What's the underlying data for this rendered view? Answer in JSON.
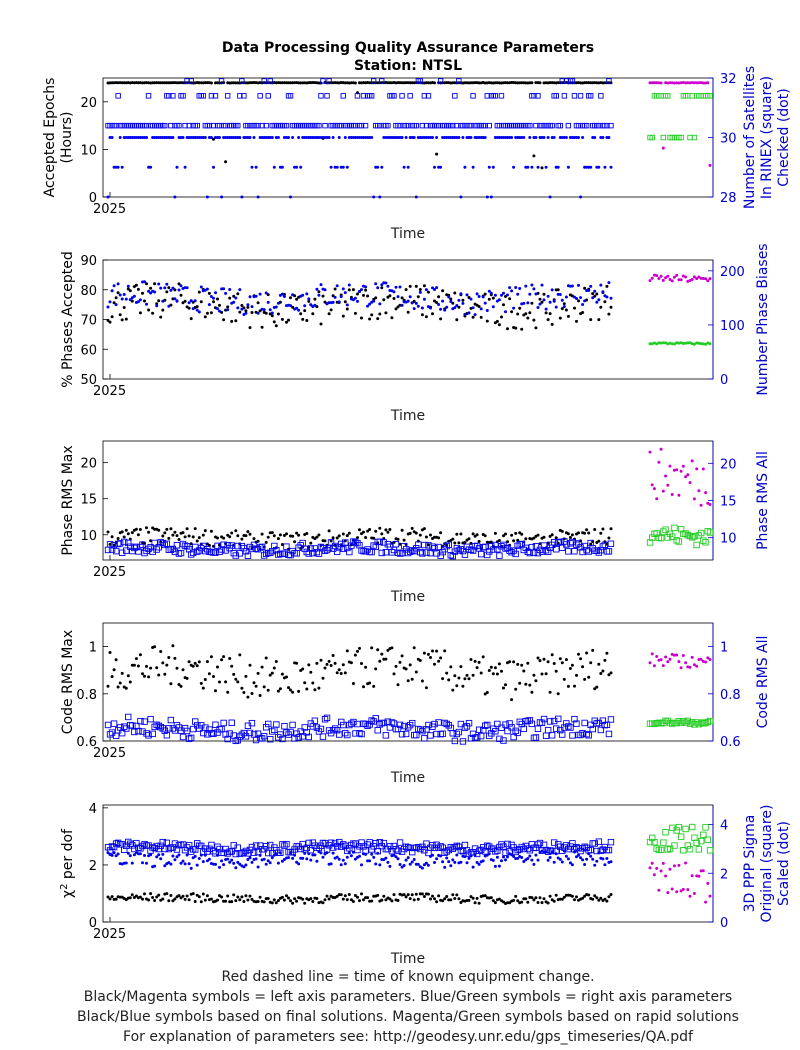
{
  "title_line1": "Data Processing Quality Assurance Parameters",
  "title_line2": "Station: NTSL",
  "colors": {
    "left_final": "#000000",
    "right_final": "#0000ee",
    "left_rapid": "#cc00cc",
    "right_rapid": "#22cc22",
    "axis_right": "#0000cc"
  },
  "footer": [
    "Red dashed line = time of known equipment change.",
    "Black/Magenta symbols = left axis parameters. Blue/Green symbols = right axis parameters",
    "Black/Blue symbols based on final solutions.  Magenta/Green symbols based on rapid solutions",
    "For explanation of parameters see: http://geodesy.unr.edu/gps_timeseries/QA.pdf"
  ],
  "chart_data": [
    {
      "type": "scatter",
      "xlabel": "Time",
      "x_tick_label": "2025",
      "ylabel_left": [
        "Accepted Epochs",
        "(Hours)"
      ],
      "ylabel_right": [
        "Number of Satellites",
        "In RINEX (square)",
        "Checked (dot)"
      ],
      "ylim_left": [
        0,
        25
      ],
      "yticks_left": [
        0,
        10,
        20
      ],
      "ylim_right": [
        28,
        32
      ],
      "yticks_right": [
        28,
        30,
        32
      ],
      "x_days": [
        1,
        260
      ],
      "series": [
        {
          "name": "Accepted Epochs",
          "axis": "left",
          "marker": "dot",
          "solution": "final",
          "typical": 24,
          "spread": 0.05
        },
        {
          "name": "Satellites in RINEX",
          "axis": "right",
          "marker": "square",
          "solution": "final",
          "levels": [
            30.4,
            31.4,
            31.9
          ]
        },
        {
          "name": "Satellites Checked",
          "axis": "right",
          "marker": "dot",
          "solution": "final",
          "levels": [
            30,
            29,
            28
          ]
        },
        {
          "name": "Accepted Epochs (rapid)",
          "axis": "left",
          "marker": "dot",
          "solution": "rapid",
          "typical": 24,
          "spread": 0.05
        },
        {
          "name": "Satellites in RINEX (rapid)",
          "axis": "right",
          "marker": "square",
          "solution": "rapid",
          "levels": [
            31.4,
            30
          ]
        }
      ]
    },
    {
      "type": "scatter",
      "xlabel": "Time",
      "x_tick_label": "2025",
      "ylabel_left": [
        "% Phases Accepted"
      ],
      "ylabel_right": [
        "Number Phase Biases"
      ],
      "ylim_left": [
        50,
        90
      ],
      "yticks_left": [
        50,
        60,
        70,
        80,
        90
      ],
      "ylim_right": [
        0,
        220
      ],
      "yticks_right": [
        0,
        100,
        200
      ],
      "series": [
        {
          "name": "% Phases Accepted",
          "axis": "left",
          "solution": "final",
          "range": [
            67,
            82
          ]
        },
        {
          "name": "Number Phase Biases",
          "axis": "right",
          "solution": "final",
          "range": [
            120,
            180
          ]
        },
        {
          "name": "% Phases Accepted (rapid)",
          "axis": "left",
          "solution": "rapid",
          "range": [
            82,
            85
          ]
        },
        {
          "name": "Number Phase Biases (rapid)",
          "axis": "right",
          "solution": "rapid",
          "range": [
            64,
            68
          ]
        }
      ]
    },
    {
      "type": "scatter",
      "xlabel": "Time",
      "x_tick_label": "2025",
      "ylabel_left": [
        "Phase RMS Max"
      ],
      "ylabel_right": [
        "Phase RMS All"
      ],
      "ylim_left": [
        6.5,
        23
      ],
      "yticks_left": [
        10,
        15,
        20
      ],
      "ylim_right": [
        7,
        23
      ],
      "yticks_right": [
        10,
        15,
        20
      ],
      "series": [
        {
          "name": "Phase RMS Max",
          "axis": "left",
          "solution": "final",
          "range": [
            8,
            11
          ]
        },
        {
          "name": "Phase RMS All",
          "axis": "right",
          "solution": "final",
          "range": [
            7.5,
            9.5
          ]
        },
        {
          "name": "Phase RMS Max (rapid)",
          "axis": "left",
          "solution": "rapid",
          "range": [
            13,
            22
          ]
        },
        {
          "name": "Phase RMS All (rapid)",
          "axis": "right",
          "solution": "rapid",
          "range": [
            9,
            12
          ]
        }
      ]
    },
    {
      "type": "scatter",
      "xlabel": "Time",
      "x_tick_label": "2025",
      "ylabel_left": [
        "Code RMS Max"
      ],
      "ylabel_right": [
        "Code RMS All"
      ],
      "ylim_left": [
        0.6,
        1.1
      ],
      "yticks_left": [
        0.6,
        0.8,
        1
      ],
      "ylim_right": [
        0.6,
        1.1
      ],
      "yticks_right": [
        0.6,
        0.8,
        1
      ],
      "series": [
        {
          "name": "Code RMS Max",
          "axis": "left",
          "solution": "final",
          "range": [
            0.78,
            1.0
          ]
        },
        {
          "name": "Code RMS All",
          "axis": "right",
          "solution": "final",
          "range": [
            0.6,
            0.7
          ]
        },
        {
          "name": "Code RMS Max (rapid)",
          "axis": "left",
          "solution": "rapid",
          "range": [
            0.9,
            0.97
          ]
        },
        {
          "name": "Code RMS All (rapid)",
          "axis": "right",
          "solution": "rapid",
          "range": [
            0.67,
            0.69
          ]
        }
      ]
    },
    {
      "type": "scatter",
      "xlabel": "Time",
      "x_tick_label": "2025",
      "ylabel_left": [
        "χ² per dof"
      ],
      "ylabel_right": [
        "3D PPP Sigma",
        "Original (square)",
        "Scaled (dot)"
      ],
      "ylim_left": [
        0,
        4.1
      ],
      "yticks_left": [
        0,
        2,
        4
      ],
      "ylim_right": [
        0,
        4.8
      ],
      "yticks_right": [
        0,
        2,
        4
      ],
      "series": [
        {
          "name": "χ² per dof",
          "axis": "left",
          "solution": "final",
          "range": [
            0.65,
            1.0
          ]
        },
        {
          "name": "3D PPP Sigma Original",
          "axis": "right",
          "marker": "square",
          "solution": "final",
          "range": [
            2.8,
            3.3
          ]
        },
        {
          "name": "3D PPP Sigma Scaled",
          "axis": "right",
          "marker": "dot",
          "solution": "final",
          "range": [
            2.2,
            2.9
          ]
        },
        {
          "name": "χ² per dof (rapid)",
          "axis": "left",
          "solution": "rapid",
          "range": [
            0.7,
            2.4
          ]
        },
        {
          "name": "3D PPP Sigma (rapid)",
          "axis": "right",
          "solution": "rapid",
          "range": [
            2.9,
            4.2
          ]
        }
      ]
    }
  ]
}
